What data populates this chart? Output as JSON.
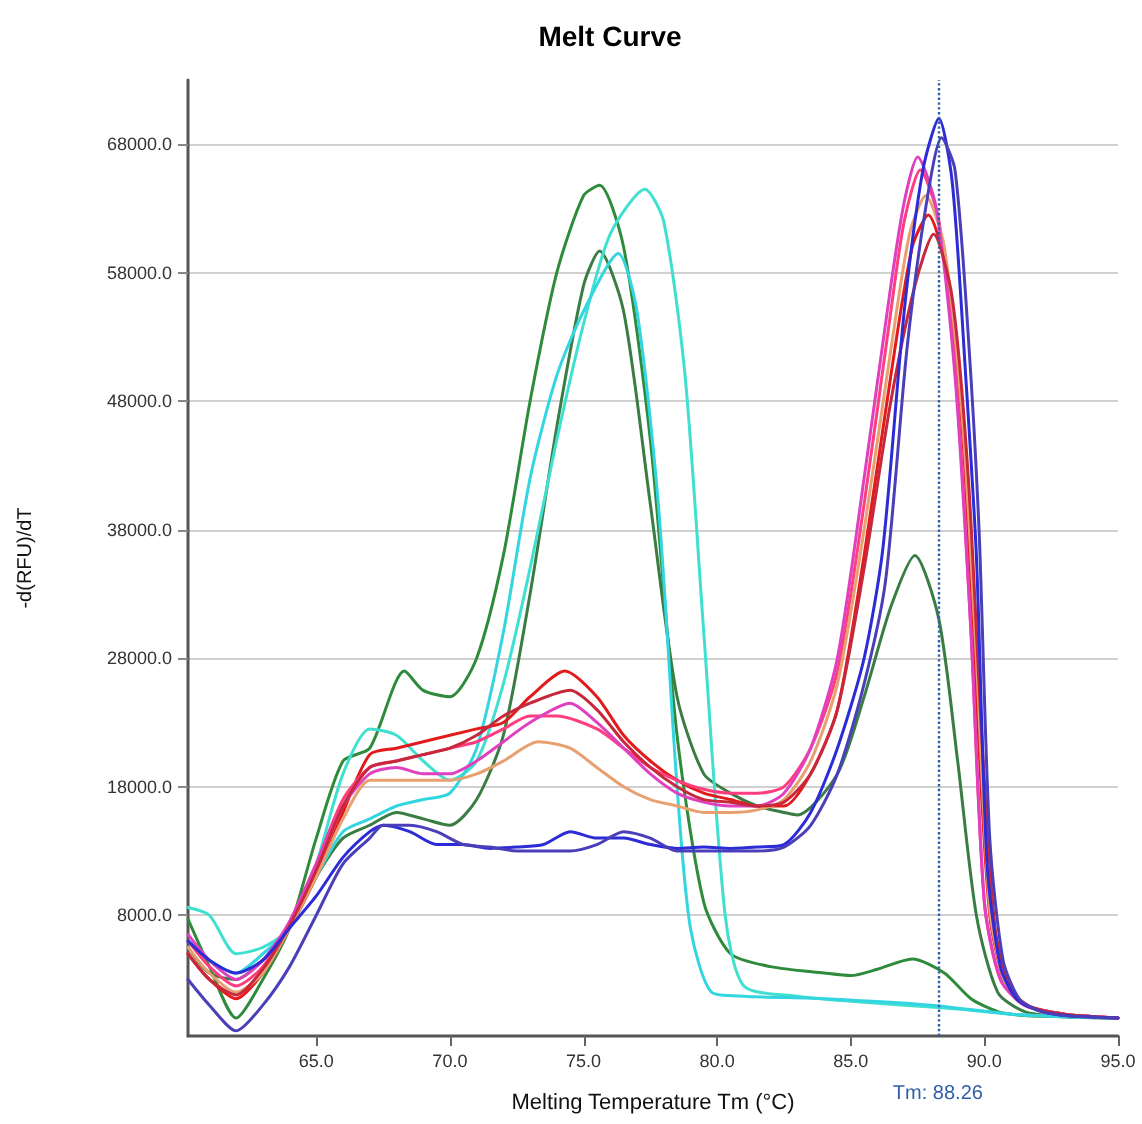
{
  "chart_data": {
    "type": "line",
    "title": "Melt Curve",
    "xlabel": "Melting Temperature Tm (°C)",
    "ylabel": "-d(RFU)/dT",
    "xlim": [
      60.2,
      95
    ],
    "ylim": [
      -1400,
      73000
    ],
    "xticks": [
      {
        "value": 65,
        "label": "65.0"
      },
      {
        "value": 70,
        "label": "70.0"
      },
      {
        "value": 75,
        "label": "75.0"
      },
      {
        "value": 80,
        "label": "80.0"
      },
      {
        "value": 85,
        "label": "85.0"
      },
      {
        "value": 90,
        "label": "90.0"
      },
      {
        "value": 95,
        "label": "95.0"
      }
    ],
    "yticks": [
      {
        "value": 8000,
        "label": "8000.0"
      },
      {
        "value": 18000,
        "label": "18000.0"
      },
      {
        "value": 28000,
        "label": "28000.0"
      },
      {
        "value": 38000,
        "label": "38000.0"
      },
      {
        "value": 48000,
        "label": "48000.0"
      },
      {
        "value": 58000,
        "label": "58000.0"
      },
      {
        "value": 68000,
        "label": "68000.0"
      }
    ],
    "grid": "y",
    "marker": "none",
    "line_style": "solid",
    "ref_lines": [
      {
        "axis": "x",
        "value": 88.26,
        "label": "Tm: 88.26",
        "color": "#2f5fa8",
        "line_style": "dotted"
      }
    ],
    "series": [
      {
        "color": "#2e8b3c",
        "x": [
          60.2,
          61,
          62,
          63,
          64,
          65,
          66,
          67,
          68.3,
          69,
          70,
          71,
          72,
          73,
          74,
          75,
          75.6,
          76.5,
          77.5,
          78.5,
          79.5,
          80.5,
          82,
          84,
          85,
          86,
          87.3,
          88.5,
          89.5,
          90.5,
          91.5,
          93,
          95
        ],
        "values": [
          7700,
          4000,
          0,
          3000,
          7000,
          14000,
          20000,
          21000,
          27000,
          25500,
          25000,
          28000,
          36000,
          48000,
          58000,
          64000,
          64800,
          60000,
          45000,
          22000,
          9000,
          5000,
          4000,
          3500,
          3300,
          3800,
          4600,
          3500,
          1500,
          500,
          200,
          100,
          0
        ]
      },
      {
        "color": "#3a7d44",
        "x": [
          60.2,
          61,
          62,
          63,
          64,
          65,
          66,
          67,
          68,
          69,
          70,
          71,
          72,
          73,
          74,
          75,
          75.6,
          76.5,
          77.5,
          78.5,
          79.5,
          80.5,
          81.5,
          82.5,
          83,
          84.5,
          85.5,
          86.5,
          87.4,
          88.3,
          89,
          89.7,
          90.5,
          91.5,
          93,
          95
        ],
        "values": [
          5500,
          3500,
          3000,
          4500,
          7000,
          11000,
          14000,
          15000,
          16000,
          15500,
          15000,
          17000,
          22000,
          33000,
          46000,
          57000,
          59700,
          55000,
          40000,
          25000,
          19000,
          17500,
          16500,
          16000,
          15800,
          19000,
          25000,
          32000,
          36000,
          31000,
          20000,
          8000,
          2000,
          500,
          100,
          0
        ]
      },
      {
        "color": "#40e0d0",
        "x": [
          60.2,
          61,
          62,
          63,
          64,
          65,
          66,
          67,
          68,
          69,
          70,
          71,
          72,
          73,
          74,
          75,
          76,
          77.3,
          78,
          78.8,
          79.5,
          80.3,
          81,
          83,
          85,
          87,
          89,
          91,
          93,
          95
        ],
        "values": [
          8600,
          8000,
          5000,
          5500,
          7000,
          12000,
          19000,
          22500,
          22000,
          20000,
          18500,
          20000,
          26000,
          35000,
          45000,
          54000,
          61000,
          64500,
          62000,
          50000,
          30000,
          8000,
          2500,
          1700,
          1300,
          1000,
          700,
          300,
          100,
          0
        ]
      },
      {
        "color": "#33d6e0",
        "x": [
          60.2,
          61,
          62,
          63,
          64,
          65,
          66,
          67,
          68,
          69,
          70,
          71,
          72,
          73,
          74,
          75,
          76.3,
          77,
          77.8,
          78.5,
          79,
          79.8,
          81,
          84,
          88,
          91,
          93,
          95
        ],
        "values": [
          6000,
          4500,
          3500,
          5000,
          7000,
          11000,
          14500,
          15500,
          16500,
          17000,
          17500,
          21000,
          30000,
          42000,
          50000,
          55000,
          59500,
          55000,
          40000,
          18000,
          7000,
          2000,
          1700,
          1500,
          1000,
          300,
          100,
          0
        ]
      },
      {
        "color": "#e31a1c",
        "x": [
          60.2,
          61,
          62,
          63,
          64,
          65,
          66,
          67,
          68,
          69,
          70,
          71,
          72,
          73,
          74.3,
          75.5,
          76.5,
          77.5,
          78.5,
          79.5,
          80.5,
          81.5,
          82.5,
          83.5,
          84.5,
          85.5,
          86.5,
          87.3,
          87.9,
          88.6,
          89.2,
          89.7,
          90.2,
          90.8,
          91.5,
          93,
          95
        ],
        "values": [
          5000,
          3000,
          1500,
          3500,
          7000,
          11000,
          16000,
          20500,
          21000,
          21500,
          22000,
          22500,
          23000,
          25000,
          27000,
          25000,
          22000,
          20000,
          18500,
          17500,
          17000,
          16500,
          16500,
          19000,
          24000,
          36000,
          50000,
          60000,
          62500,
          58000,
          45000,
          25000,
          8000,
          2500,
          1000,
          300,
          0
        ]
      },
      {
        "color": "#ff3d7f",
        "x": [
          60.2,
          61,
          62,
          63,
          64,
          65,
          66,
          67,
          68,
          69,
          70,
          71,
          72,
          73,
          74,
          75.5,
          76.5,
          77.5,
          78.5,
          79.5,
          80.5,
          81.5,
          82.5,
          83.5,
          84.5,
          85.5,
          86.5,
          87,
          87.6,
          88.3,
          89,
          89.5,
          90,
          90.6,
          91.5,
          93,
          95
        ],
        "values": [
          6000,
          4000,
          2500,
          4000,
          7500,
          12000,
          17000,
          19500,
          20000,
          20500,
          21000,
          21500,
          22500,
          23500,
          23500,
          22500,
          21000,
          19500,
          18500,
          17800,
          17500,
          17500,
          18000,
          21000,
          27000,
          40000,
          55000,
          62000,
          66000,
          62000,
          48000,
          30000,
          9000,
          3000,
          1000,
          300,
          0
        ]
      },
      {
        "color": "#e8a070",
        "x": [
          60.2,
          61,
          62,
          63,
          64,
          65,
          66,
          67,
          68,
          69,
          70,
          71,
          72,
          73.3,
          74.5,
          75.5,
          76.5,
          77.5,
          78.5,
          79.5,
          80.5,
          81.5,
          82.5,
          83.5,
          84.5,
          85.5,
          86.5,
          87.2,
          87.8,
          88.5,
          89.2,
          89.7,
          90.2,
          90.8,
          91.5,
          93,
          95
        ],
        "values": [
          5500,
          3500,
          2000,
          3500,
          7000,
          11000,
          15500,
          18500,
          18500,
          18500,
          18500,
          19000,
          20000,
          21500,
          21000,
          19500,
          18000,
          17000,
          16500,
          16000,
          16000,
          16200,
          17000,
          20000,
          26000,
          38000,
          52000,
          61000,
          64000,
          60000,
          46000,
          28000,
          8500,
          2500,
          1000,
          300,
          0
        ]
      },
      {
        "color": "#e040c0",
        "x": [
          60.2,
          61,
          62,
          63,
          64,
          65,
          66,
          67,
          68,
          69,
          70,
          71,
          72,
          73,
          74.5,
          75.5,
          76.5,
          77.5,
          78.5,
          79.5,
          80.5,
          81.5,
          82.5,
          83.5,
          84.5,
          85.5,
          86.5,
          87,
          87.5,
          88.2,
          88.9,
          89.5,
          90,
          90.6,
          91.5,
          93,
          95
        ],
        "values": [
          6500,
          4500,
          3000,
          4500,
          7500,
          12000,
          16500,
          19000,
          19500,
          19000,
          19000,
          20000,
          21500,
          23000,
          24500,
          23000,
          21000,
          19000,
          17500,
          16800,
          16500,
          16500,
          17500,
          21000,
          28000,
          42000,
          57000,
          63500,
          67000,
          63000,
          50000,
          30000,
          9000,
          3000,
          1000,
          300,
          0
        ]
      },
      {
        "color": "#c8283c",
        "x": [
          60.2,
          61,
          62,
          63,
          64,
          65,
          66,
          67,
          68,
          69,
          70,
          71,
          72,
          73,
          74.5,
          75.5,
          76.5,
          77.5,
          78.5,
          79.5,
          80.5,
          81.5,
          82.5,
          83.5,
          84.5,
          85.5,
          86.5,
          87.4,
          88.1,
          88.8,
          89.4,
          89.9,
          90.4,
          91,
          91.7,
          93,
          95
        ],
        "values": [
          5000,
          3000,
          1800,
          3800,
          7200,
          11500,
          16500,
          19500,
          20000,
          20500,
          21000,
          22000,
          23500,
          24500,
          25500,
          24000,
          21500,
          19500,
          18000,
          17000,
          16800,
          16500,
          16800,
          19000,
          24000,
          35000,
          48000,
          57000,
          61000,
          56000,
          42000,
          22000,
          7000,
          2200,
          900,
          300,
          0
        ]
      },
      {
        "color": "#2b2bd8",
        "x": [
          60.2,
          61,
          62,
          63,
          64,
          65,
          66,
          67,
          67.5,
          68.5,
          69.5,
          70.5,
          71.5,
          72.5,
          73.5,
          74.5,
          75.5,
          76.5,
          77.5,
          78.5,
          79.5,
          80.5,
          81.5,
          82.5,
          83.5,
          84.5,
          85.5,
          86.2,
          87,
          87.7,
          88.3,
          88.8,
          89.3,
          89.7,
          90.1,
          90.6,
          91.2,
          92,
          93,
          95
        ],
        "values": [
          6000,
          4500,
          3500,
          4500,
          7000,
          9500,
          12500,
          14500,
          15000,
          14500,
          13500,
          13500,
          13200,
          13300,
          13500,
          14500,
          14000,
          14000,
          13500,
          13200,
          13300,
          13200,
          13300,
          13500,
          16000,
          21000,
          28000,
          36500,
          55000,
          66000,
          70000,
          65000,
          50000,
          36000,
          12000,
          4000,
          1500,
          600,
          200,
          0
        ]
      },
      {
        "color": "#4a3fb8",
        "x": [
          60.2,
          61,
          62,
          63,
          64,
          65,
          66,
          67,
          67.5,
          68.5,
          69.5,
          70.5,
          71.5,
          72.5,
          73.5,
          74.5,
          75.5,
          76.5,
          77.5,
          78.5,
          79.5,
          80.5,
          81.5,
          82.5,
          83.5,
          84.5,
          85.5,
          86.3,
          87.1,
          87.8,
          88.4,
          88.9,
          89.4,
          89.8,
          90.2,
          90.7,
          91.3,
          92,
          93,
          95
        ],
        "values": [
          3000,
          1000,
          -1000,
          1000,
          4000,
          8000,
          12000,
          14000,
          15000,
          15000,
          14500,
          13500,
          13300,
          13000,
          13000,
          13000,
          13500,
          14500,
          14000,
          13000,
          13000,
          13000,
          13000,
          13300,
          15000,
          19000,
          26000,
          34000,
          52000,
          63000,
          68500,
          66000,
          53000,
          38000,
          14000,
          4500,
          1500,
          600,
          200,
          0
        ]
      }
    ]
  }
}
